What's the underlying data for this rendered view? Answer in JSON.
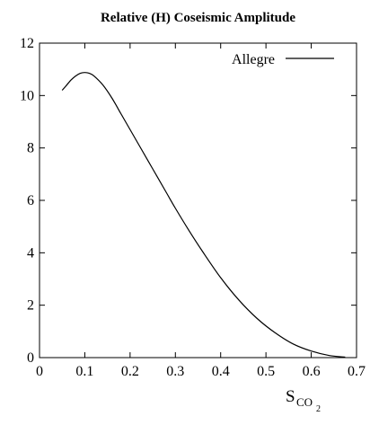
{
  "chart_data": {
    "type": "line",
    "title": "Relative (H) Coseismic Amplitude",
    "xlabel": {
      "main": "S",
      "sub": "CO",
      "subsub": "2"
    },
    "ylabel": "",
    "xlim": [
      0,
      0.7
    ],
    "ylim": [
      0,
      12
    ],
    "x_ticks": [
      0,
      0.1,
      0.2,
      0.3,
      0.4,
      0.5,
      0.6,
      0.7
    ],
    "x_tick_labels": [
      "0",
      "0.1",
      "0.2",
      "0.3",
      "0.4",
      "0.5",
      "0.6",
      "0.7"
    ],
    "y_ticks": [
      0,
      2,
      4,
      6,
      8,
      10,
      12
    ],
    "y_tick_labels": [
      "0",
      "2",
      "4",
      "6",
      "8",
      "10",
      "12"
    ],
    "grid": false,
    "legend_position": "top-right",
    "series": [
      {
        "name": "Allegre",
        "color": "#000000",
        "x": [
          0.05,
          0.06,
          0.07,
          0.08,
          0.09,
          0.1,
          0.11,
          0.12,
          0.14,
          0.16,
          0.18,
          0.2,
          0.22,
          0.25,
          0.28,
          0.3,
          0.33,
          0.36,
          0.4,
          0.44,
          0.48,
          0.52,
          0.56,
          0.6,
          0.64,
          0.675
        ],
        "values": [
          10.2,
          10.4,
          10.6,
          10.75,
          10.85,
          10.88,
          10.85,
          10.75,
          10.4,
          9.9,
          9.3,
          8.7,
          8.1,
          7.2,
          6.3,
          5.7,
          4.85,
          4.05,
          3.05,
          2.2,
          1.5,
          0.95,
          0.52,
          0.25,
          0.08,
          0.02
        ]
      }
    ]
  }
}
